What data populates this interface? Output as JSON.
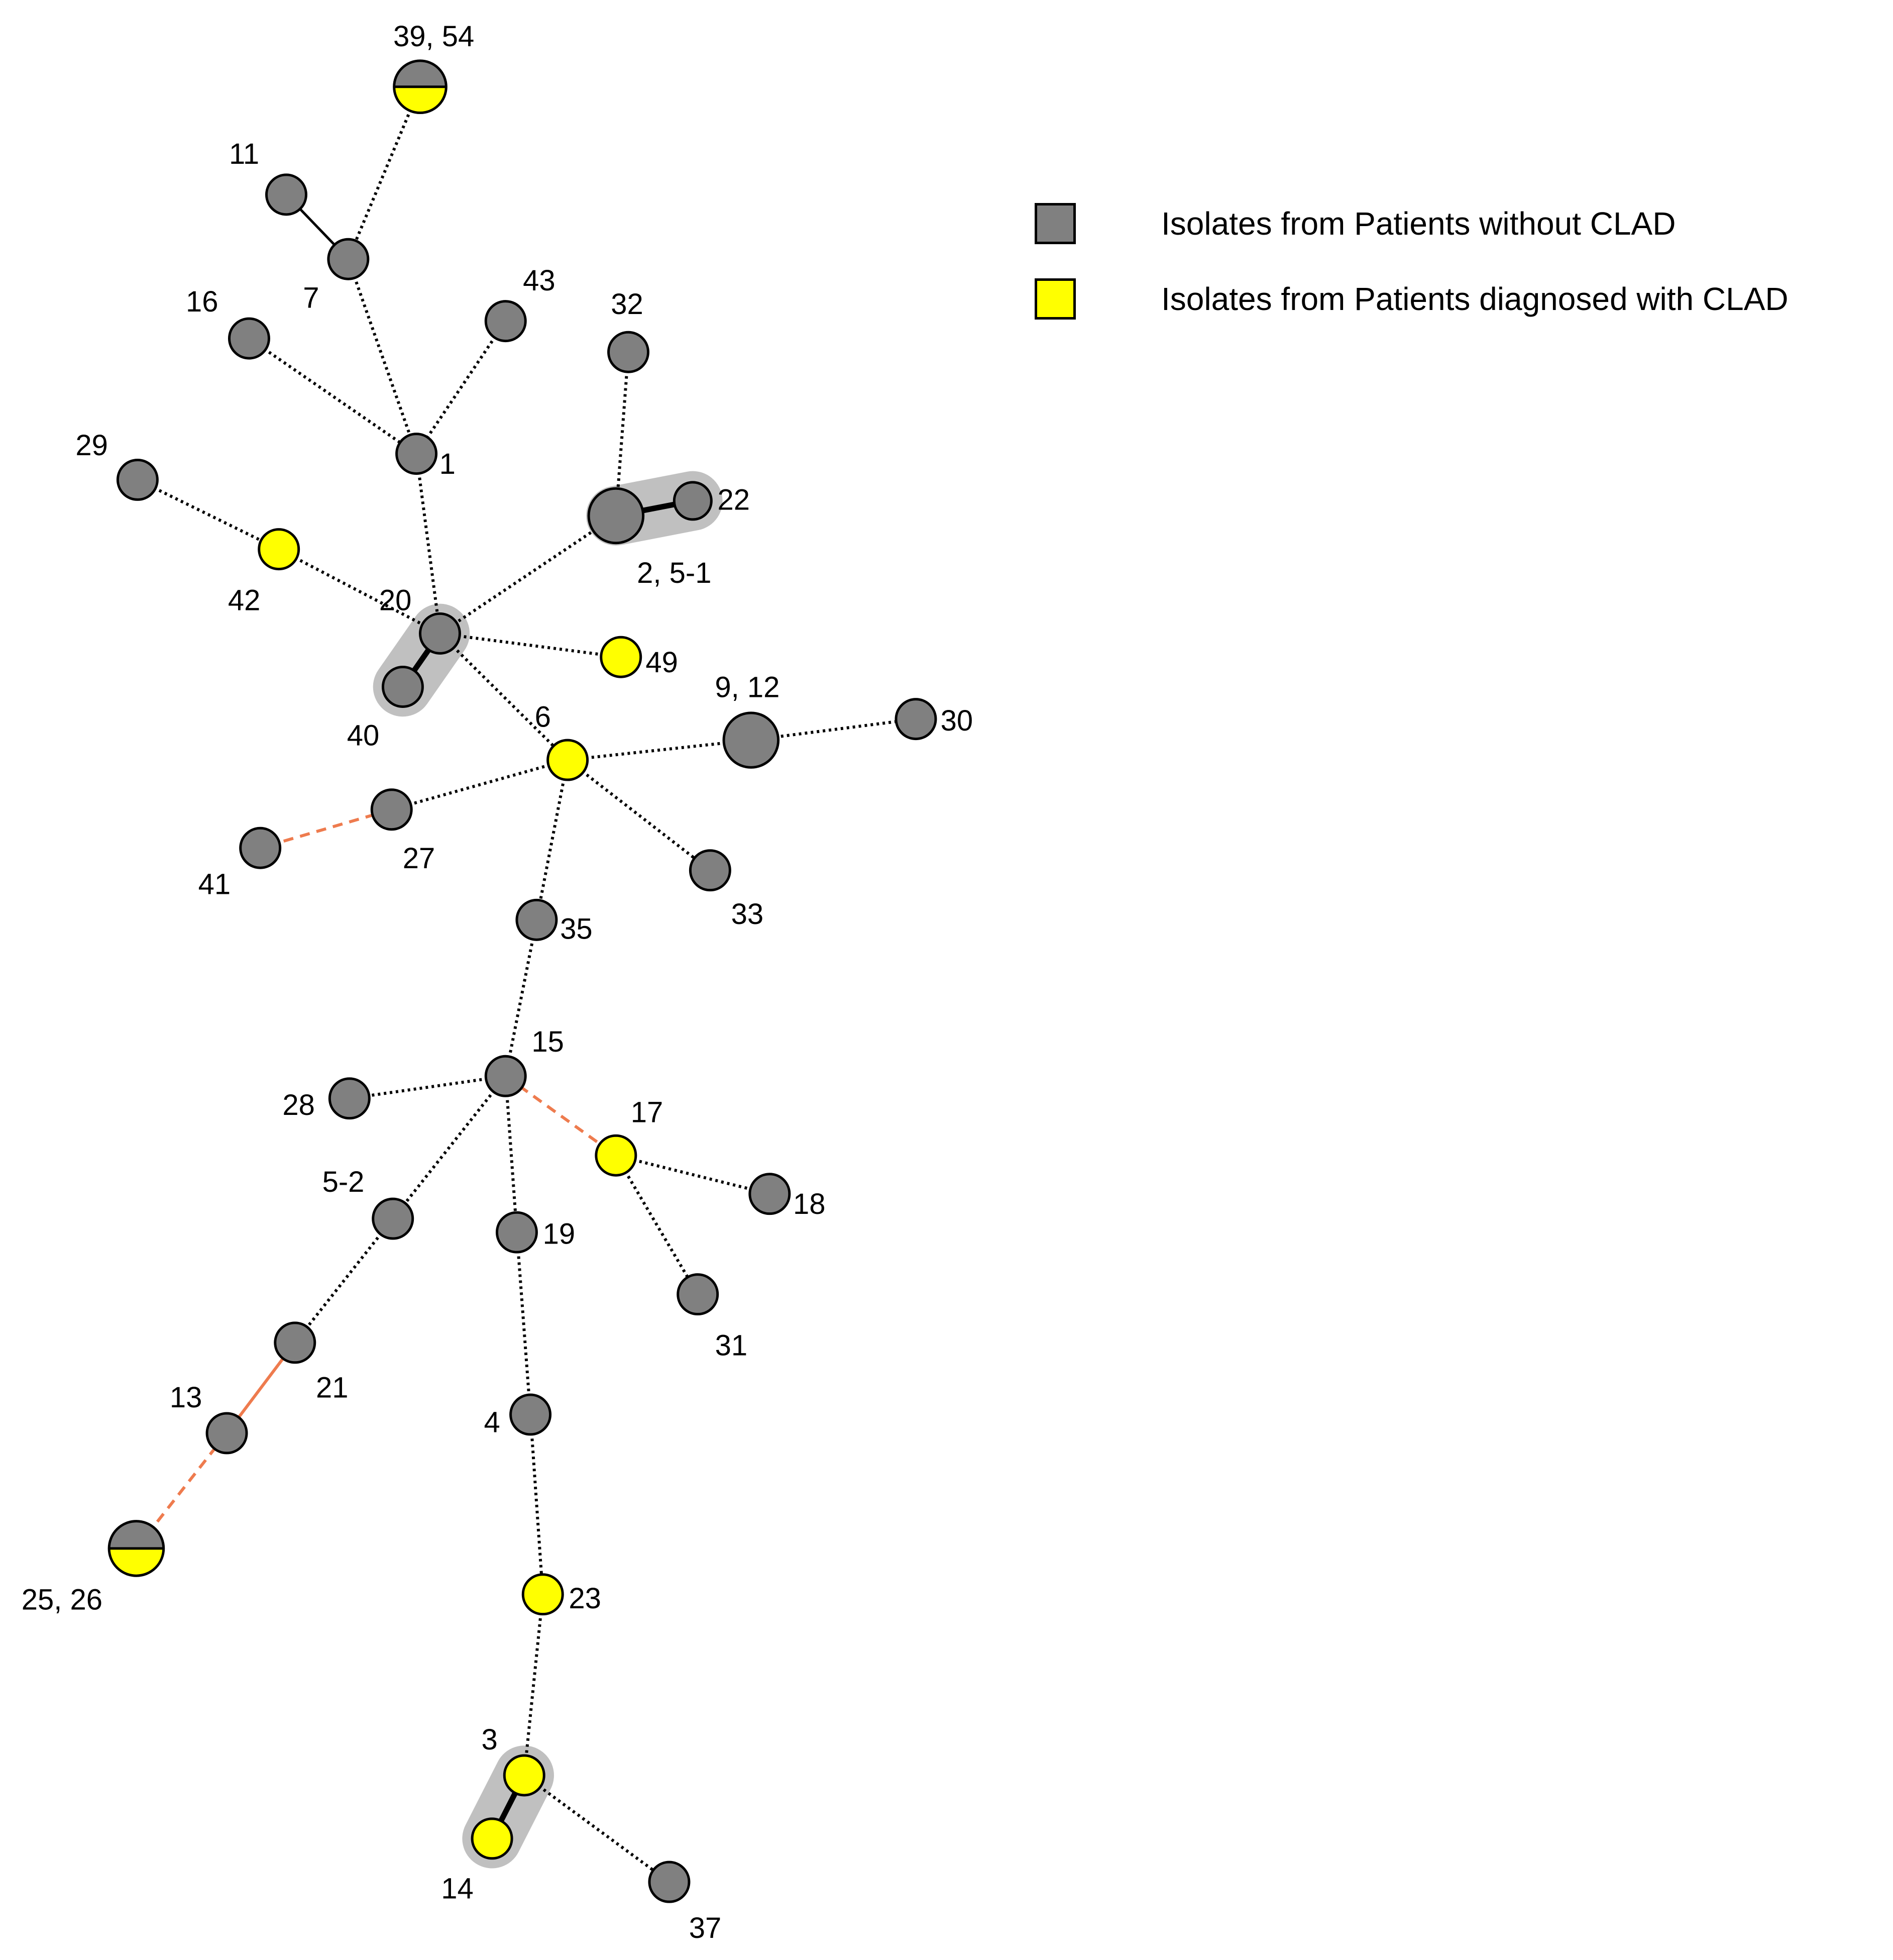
{
  "colors": {
    "no_clad": "#808080",
    "clad": "#ffff00",
    "cluster_halo": "#c0c0c0",
    "edge_dotted": "#000000",
    "edge_orange": "#ee7b4e",
    "outline": "#000000"
  },
  "legend": {
    "items": [
      {
        "label": "Isolates from Patients without CLAD",
        "color": "#808080"
      },
      {
        "label": "Isolates from Patients diagnosed with CLAD",
        "color": "#ffff00"
      }
    ]
  },
  "nodes": [
    {
      "id": "39,54",
      "label": "39, 54",
      "status": "mixed"
    },
    {
      "id": "11",
      "label": "11",
      "status": "no_clad"
    },
    {
      "id": "7",
      "label": "7",
      "status": "no_clad"
    },
    {
      "id": "16",
      "label": "16",
      "status": "no_clad"
    },
    {
      "id": "43",
      "label": "43",
      "status": "no_clad"
    },
    {
      "id": "32",
      "label": "32",
      "status": "no_clad"
    },
    {
      "id": "1",
      "label": "1",
      "status": "no_clad"
    },
    {
      "id": "29",
      "label": "29",
      "status": "no_clad"
    },
    {
      "id": "42",
      "label": "42",
      "status": "clad"
    },
    {
      "id": "2,5-1",
      "label": "2, 5-1",
      "status": "no_clad"
    },
    {
      "id": "22",
      "label": "22",
      "status": "no_clad"
    },
    {
      "id": "20",
      "label": "20",
      "status": "no_clad"
    },
    {
      "id": "40",
      "label": "40",
      "status": "no_clad"
    },
    {
      "id": "49",
      "label": "49",
      "status": "clad"
    },
    {
      "id": "9,12",
      "label": "9, 12",
      "status": "no_clad"
    },
    {
      "id": "30",
      "label": "30",
      "status": "no_clad"
    },
    {
      "id": "6",
      "label": "6",
      "status": "clad"
    },
    {
      "id": "27",
      "label": "27",
      "status": "no_clad"
    },
    {
      "id": "41",
      "label": "41",
      "status": "no_clad"
    },
    {
      "id": "33",
      "label": "33",
      "status": "no_clad"
    },
    {
      "id": "35",
      "label": "35",
      "status": "no_clad"
    },
    {
      "id": "15",
      "label": "15",
      "status": "no_clad"
    },
    {
      "id": "28",
      "label": "28",
      "status": "no_clad"
    },
    {
      "id": "17",
      "label": "17",
      "status": "clad"
    },
    {
      "id": "18",
      "label": "18",
      "status": "no_clad"
    },
    {
      "id": "5-2",
      "label": "5-2",
      "status": "no_clad"
    },
    {
      "id": "19",
      "label": "19",
      "status": "no_clad"
    },
    {
      "id": "31",
      "label": "31",
      "status": "no_clad"
    },
    {
      "id": "21",
      "label": "21",
      "status": "no_clad"
    },
    {
      "id": "13",
      "label": "13",
      "status": "no_clad"
    },
    {
      "id": "4",
      "label": "4",
      "status": "no_clad"
    },
    {
      "id": "25,26",
      "label": "25, 26",
      "status": "mixed"
    },
    {
      "id": "23",
      "label": "23",
      "status": "clad"
    },
    {
      "id": "3",
      "label": "3",
      "status": "clad"
    },
    {
      "id": "14",
      "label": "14",
      "status": "clad"
    },
    {
      "id": "37",
      "label": "37",
      "status": "no_clad"
    }
  ],
  "edges": [
    {
      "from": "39,54",
      "to": "7",
      "style": "dotted"
    },
    {
      "from": "11",
      "to": "7",
      "style": "solid"
    },
    {
      "from": "7",
      "to": "1",
      "style": "dotted"
    },
    {
      "from": "16",
      "to": "1",
      "style": "dotted"
    },
    {
      "from": "43",
      "to": "1",
      "style": "dotted"
    },
    {
      "from": "1",
      "to": "20",
      "style": "dotted"
    },
    {
      "from": "29",
      "to": "42",
      "style": "dotted"
    },
    {
      "from": "42",
      "to": "20",
      "style": "dotted"
    },
    {
      "from": "32",
      "to": "2,5-1",
      "style": "dotted"
    },
    {
      "from": "2,5-1",
      "to": "22",
      "style": "thick"
    },
    {
      "from": "2,5-1",
      "to": "20",
      "style": "dotted"
    },
    {
      "from": "20",
      "to": "40",
      "style": "thick"
    },
    {
      "from": "20",
      "to": "49",
      "style": "dotted"
    },
    {
      "from": "20",
      "to": "6",
      "style": "dotted"
    },
    {
      "from": "6",
      "to": "9,12",
      "style": "dotted"
    },
    {
      "from": "9,12",
      "to": "30",
      "style": "dotted"
    },
    {
      "from": "6",
      "to": "27",
      "style": "dotted"
    },
    {
      "from": "27",
      "to": "41",
      "style": "orange-dashed"
    },
    {
      "from": "6",
      "to": "33",
      "style": "dotted"
    },
    {
      "from": "6",
      "to": "35",
      "style": "dotted"
    },
    {
      "from": "35",
      "to": "15",
      "style": "dotted"
    },
    {
      "from": "15",
      "to": "28",
      "style": "dotted"
    },
    {
      "from": "15",
      "to": "17",
      "style": "orange-dashed"
    },
    {
      "from": "17",
      "to": "18",
      "style": "dotted"
    },
    {
      "from": "17",
      "to": "31",
      "style": "dotted"
    },
    {
      "from": "15",
      "to": "5-2",
      "style": "dotted"
    },
    {
      "from": "15",
      "to": "19",
      "style": "dotted"
    },
    {
      "from": "5-2",
      "to": "21",
      "style": "dotted"
    },
    {
      "from": "21",
      "to": "13",
      "style": "orange-solid"
    },
    {
      "from": "13",
      "to": "25,26",
      "style": "orange-dashed"
    },
    {
      "from": "19",
      "to": "4",
      "style": "dotted"
    },
    {
      "from": "4",
      "to": "23",
      "style": "dotted"
    },
    {
      "from": "23",
      "to": "3",
      "style": "dotted"
    },
    {
      "from": "3",
      "to": "14",
      "style": "thick"
    },
    {
      "from": "3",
      "to": "37",
      "style": "dotted"
    }
  ],
  "clusters": [
    [
      "2,5-1",
      "22"
    ],
    [
      "20",
      "40"
    ],
    [
      "3",
      "14"
    ]
  ]
}
